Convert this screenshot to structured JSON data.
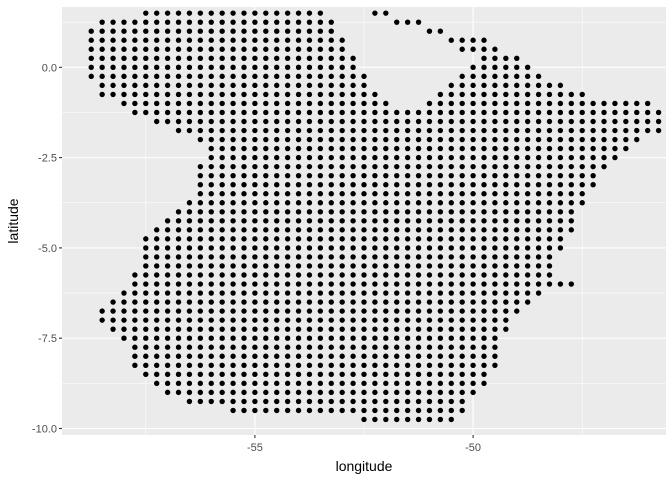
{
  "chart_data": {
    "type": "scatter",
    "title": "",
    "xlabel": "longitude",
    "ylabel": "latitude",
    "xlim": [
      -59.42,
      -45.58
    ],
    "ylim": [
      -10.18,
      1.67
    ],
    "x_ticks": [
      -55,
      -50
    ],
    "x_tick_labels": [
      "-55",
      "-50"
    ],
    "y_ticks": [
      0.0,
      -2.5,
      -5.0,
      -7.5,
      -10.0
    ],
    "y_tick_labels": [
      "0.0",
      "-2.5",
      "-5.0",
      "-7.5",
      "-10.0"
    ],
    "grid": true,
    "legend": "none",
    "point_color": "#000000",
    "grid_spacing": 0.25,
    "rows": [
      {
        "lat": 1.5,
        "segments": [
          [
            -57.5,
            -53.5
          ]
        ]
      },
      {
        "lat": 1.5,
        "segments": [
          [
            -52.25,
            -52.0
          ]
        ]
      },
      {
        "lat": 1.25,
        "segments": [
          [
            -58.5,
            -53.25
          ],
          [
            -51.75,
            -51.25
          ]
        ]
      },
      {
        "lat": 1.0,
        "segments": [
          [
            -58.75,
            -53.25
          ],
          [
            -51.0,
            -50.75
          ]
        ]
      },
      {
        "lat": 0.75,
        "segments": [
          [
            -58.75,
            -53.0
          ],
          [
            -50.5,
            -49.75
          ]
        ]
      },
      {
        "lat": 0.5,
        "segments": [
          [
            -58.75,
            -53.0
          ],
          [
            -50.25,
            -49.5
          ]
        ]
      },
      {
        "lat": 0.25,
        "segments": [
          [
            -58.75,
            -52.75
          ],
          [
            -49.75,
            -49.0
          ]
        ]
      },
      {
        "lat": 0.0,
        "segments": [
          [
            -58.75,
            -52.75
          ],
          [
            -50.0,
            -48.75
          ]
        ]
      },
      {
        "lat": -0.25,
        "segments": [
          [
            -58.75,
            -52.5
          ],
          [
            -50.25,
            -48.5
          ]
        ]
      },
      {
        "lat": -0.5,
        "segments": [
          [
            -58.5,
            -52.5
          ],
          [
            -50.5,
            -48.0
          ]
        ]
      },
      {
        "lat": -0.75,
        "segments": [
          [
            -58.5,
            -52.25
          ],
          [
            -50.75,
            -47.5
          ]
        ]
      },
      {
        "lat": -1.0,
        "segments": [
          [
            -58.0,
            -52.0
          ],
          [
            -51.0,
            -46.0
          ]
        ]
      },
      {
        "lat": -1.25,
        "segments": [
          [
            -57.75,
            -51.25
          ],
          [
            -51.0,
            -45.75
          ]
        ]
      },
      {
        "lat": -1.5,
        "segments": [
          [
            -57.25,
            -45.75
          ]
        ]
      },
      {
        "lat": -1.75,
        "segments": [
          [
            -56.75,
            -45.75
          ]
        ]
      },
      {
        "lat": -2.0,
        "segments": [
          [
            -56.25,
            -46.25
          ]
        ]
      },
      {
        "lat": -2.25,
        "segments": [
          [
            -56.0,
            -46.5
          ]
        ]
      },
      {
        "lat": -2.5,
        "segments": [
          [
            -56.0,
            -46.75
          ]
        ]
      },
      {
        "lat": -2.75,
        "segments": [
          [
            -56.25,
            -47.0
          ]
        ]
      },
      {
        "lat": -3.0,
        "segments": [
          [
            -56.25,
            -47.25
          ]
        ]
      },
      {
        "lat": -3.25,
        "segments": [
          [
            -56.25,
            -47.25
          ]
        ]
      },
      {
        "lat": -3.5,
        "segments": [
          [
            -56.25,
            -47.5
          ]
        ]
      },
      {
        "lat": -3.75,
        "segments": [
          [
            -56.5,
            -47.5
          ]
        ]
      },
      {
        "lat": -4.0,
        "segments": [
          [
            -56.75,
            -47.75
          ]
        ]
      },
      {
        "lat": -4.25,
        "segments": [
          [
            -57.0,
            -47.75
          ]
        ]
      },
      {
        "lat": -4.5,
        "segments": [
          [
            -57.25,
            -47.75
          ]
        ]
      },
      {
        "lat": -4.75,
        "segments": [
          [
            -57.5,
            -48.0
          ]
        ]
      },
      {
        "lat": -5.0,
        "segments": [
          [
            -57.5,
            -48.0
          ]
        ]
      },
      {
        "lat": -5.25,
        "segments": [
          [
            -57.5,
            -48.25
          ]
        ]
      },
      {
        "lat": -5.5,
        "segments": [
          [
            -57.5,
            -48.25
          ]
        ]
      },
      {
        "lat": -5.75,
        "segments": [
          [
            -57.75,
            -48.25
          ]
        ]
      },
      {
        "lat": -6.0,
        "segments": [
          [
            -57.75,
            -47.75
          ]
        ]
      },
      {
        "lat": -6.25,
        "segments": [
          [
            -58.0,
            -48.5
          ]
        ]
      },
      {
        "lat": -6.5,
        "segments": [
          [
            -58.25,
            -48.75
          ]
        ]
      },
      {
        "lat": -6.75,
        "segments": [
          [
            -58.5,
            -49.0
          ]
        ]
      },
      {
        "lat": -7.0,
        "segments": [
          [
            -58.5,
            -49.25
          ]
        ]
      },
      {
        "lat": -7.25,
        "segments": [
          [
            -58.25,
            -49.25
          ]
        ]
      },
      {
        "lat": -7.5,
        "segments": [
          [
            -58.0,
            -49.5
          ]
        ]
      },
      {
        "lat": -7.75,
        "segments": [
          [
            -57.75,
            -49.5
          ]
        ]
      },
      {
        "lat": -8.0,
        "segments": [
          [
            -57.75,
            -49.5
          ]
        ]
      },
      {
        "lat": -8.25,
        "segments": [
          [
            -57.75,
            -49.5
          ]
        ]
      },
      {
        "lat": -8.5,
        "segments": [
          [
            -57.5,
            -49.75
          ]
        ]
      },
      {
        "lat": -8.75,
        "segments": [
          [
            -57.25,
            -49.75
          ]
        ]
      },
      {
        "lat": -9.0,
        "segments": [
          [
            -57.0,
            -50.0
          ]
        ]
      },
      {
        "lat": -9.25,
        "segments": [
          [
            -56.5,
            -50.25
          ]
        ]
      },
      {
        "lat": -9.5,
        "segments": [
          [
            -55.5,
            -50.25
          ]
        ]
      },
      {
        "lat": -9.75,
        "segments": [
          [
            -52.5,
            -50.5
          ]
        ]
      }
    ]
  }
}
